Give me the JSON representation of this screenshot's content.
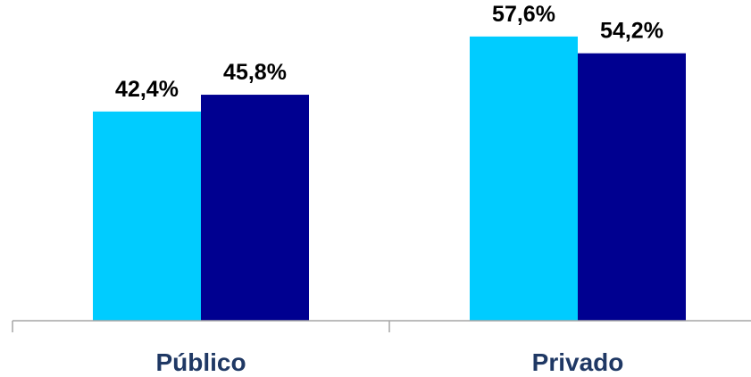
{
  "chart_data": {
    "type": "bar",
    "categories": [
      "Público",
      "Privado"
    ],
    "series": [
      {
        "values": [
          42.4,
          57.6
        ],
        "labels": [
          "42,4%",
          "57,6%"
        ],
        "color": "#00ccff"
      },
      {
        "values": [
          45.8,
          54.2
        ],
        "labels": [
          "45,8%",
          "54,2%"
        ],
        "color": "#000090"
      }
    ],
    "ylim": [
      0,
      65
    ],
    "grid": false,
    "legend": "none"
  }
}
